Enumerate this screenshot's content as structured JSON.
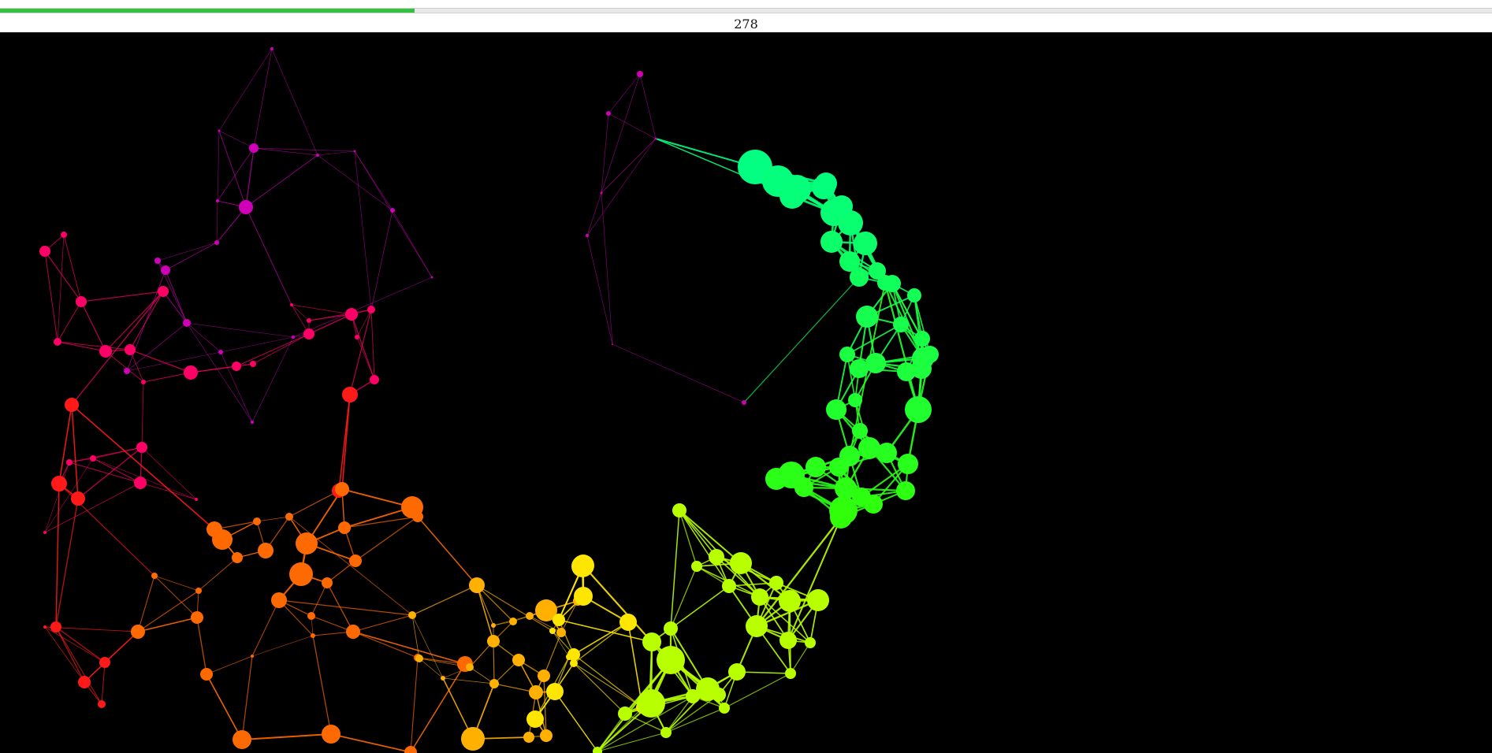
{
  "progress": {
    "fraction": 0.278,
    "color": "#33c13f"
  },
  "counter": {
    "value": "278"
  },
  "graph": {
    "background": "#000000",
    "colors": {
      "magenta": "#d000b8",
      "pink": "#ff0066",
      "red": "#ff1a1a",
      "orange": "#ff6a00",
      "amber": "#ffb000",
      "yellow": "#ffe600",
      "lime": "#b8ff00",
      "green": "#33ff00",
      "mint": "#00ff88"
    }
  }
}
